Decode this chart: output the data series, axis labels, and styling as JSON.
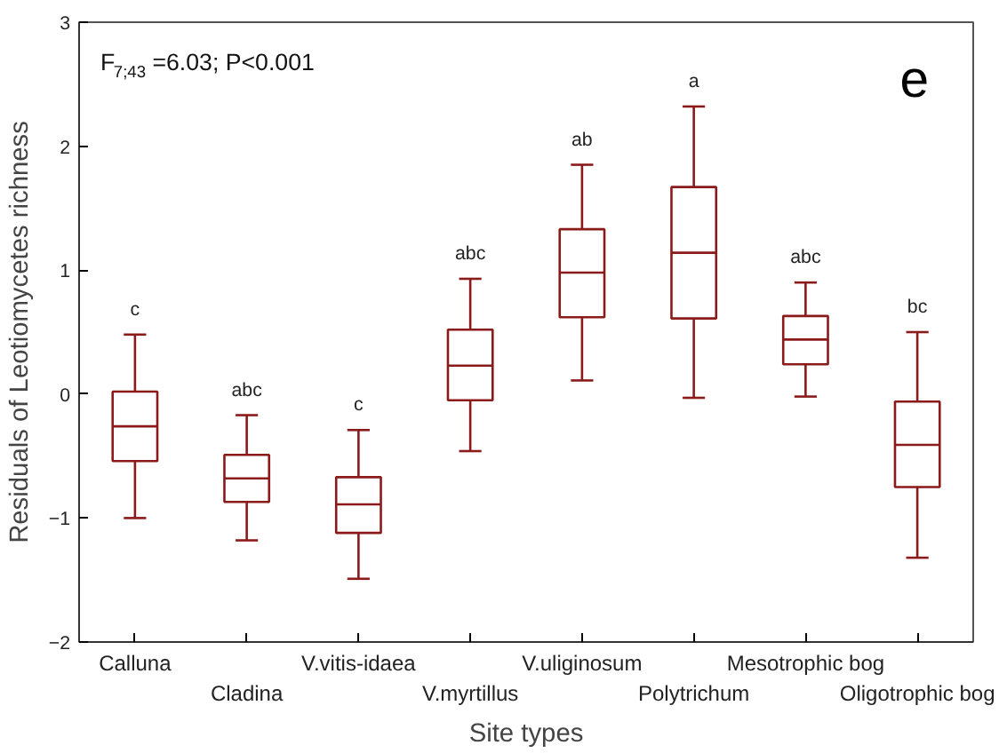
{
  "chart_data": {
    "type": "box",
    "categories": [
      "Calluna",
      "Cladina",
      "V.vitis-idaea",
      "V.myrtillus",
      "V.uliginosum",
      "Polytrichum",
      "Mesotrophic bog",
      "Oligotrophic bog"
    ],
    "boxes": [
      {
        "low": -1.0,
        "q1": -0.54,
        "median": -0.26,
        "q3": 0.02,
        "high": 0.48
      },
      {
        "low": -1.18,
        "q1": -0.87,
        "median": -0.68,
        "q3": -0.49,
        "high": -0.17
      },
      {
        "low": -1.49,
        "q1": -1.12,
        "median": -0.89,
        "q3": -0.67,
        "high": -0.29
      },
      {
        "low": -0.46,
        "q1": -0.05,
        "median": 0.23,
        "q3": 0.52,
        "high": 0.93
      },
      {
        "low": 0.11,
        "q1": 0.62,
        "median": 0.98,
        "q3": 1.33,
        "high": 1.85
      },
      {
        "low": -0.03,
        "q1": 0.61,
        "median": 1.14,
        "q3": 1.67,
        "high": 2.32
      },
      {
        "low": -0.02,
        "q1": 0.24,
        "median": 0.44,
        "q3": 0.63,
        "high": 0.9
      },
      {
        "low": -1.32,
        "q1": -0.75,
        "median": -0.41,
        "q3": -0.06,
        "high": 0.5
      }
    ],
    "color": "#8b1a1a",
    "xlabel": "Site types",
    "ylabel": "Residuals of Leotiomycetes richness",
    "ylim": [
      -2,
      3
    ],
    "yticks": [
      -2,
      -1,
      0,
      1,
      2,
      3
    ],
    "grid": false,
    "annotations": [
      "F$_{7;43}$=6.03; P<0.001",
      "e",
      {
        "text": "c",
        "x": "Calluna",
        "y": 0.48
      },
      {
        "text": "abc",
        "x": "Cladina",
        "y": -0.17
      },
      {
        "text": "c",
        "x": "V.vitis-idaea",
        "y": -0.29
      },
      {
        "text": "abc",
        "x": "V.myrtillus",
        "y": 0.93
      },
      {
        "text": "ab",
        "x": "V.uliginosum",
        "y": 1.85
      },
      {
        "text": "a",
        "x": "Polytrichum",
        "y": 2.32
      },
      {
        "text": "abc",
        "x": "Mesotrophic bog",
        "y": 0.9
      },
      {
        "text": "bc",
        "x": "Oligotrophic bog",
        "y": 0.5
      }
    ]
  }
}
